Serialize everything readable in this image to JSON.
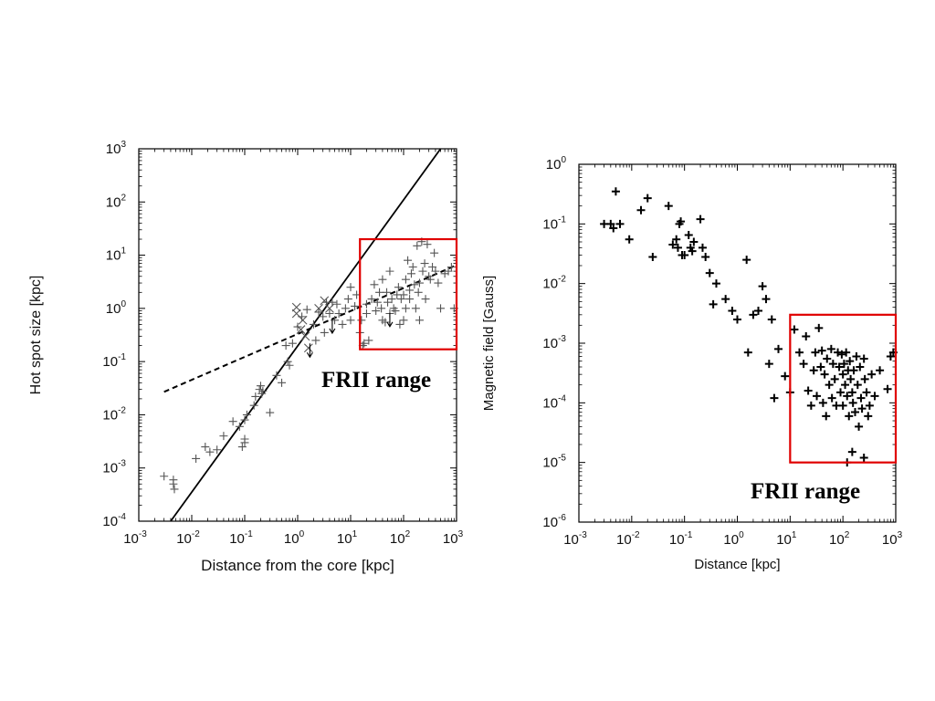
{
  "chart_data": [
    {
      "type": "scatter",
      "xlabel": "Distance from the core  [kpc]",
      "ylabel": "Hot spot size [kpc]",
      "xscale": "log",
      "yscale": "log",
      "xlim": [
        0.001,
        1000
      ],
      "ylim": [
        0.0001,
        1000
      ],
      "x_ticks": [
        {
          "base": "10",
          "exp": "-3"
        },
        {
          "base": "10",
          "exp": "-2"
        },
        {
          "base": "10",
          "exp": "-1"
        },
        {
          "base": "10",
          "exp": "0"
        },
        {
          "base": "10",
          "exp": "1"
        },
        {
          "base": "10",
          "exp": "2"
        },
        {
          "base": "10",
          "exp": "3"
        }
      ],
      "y_ticks": [
        {
          "base": "10",
          "exp": "-4"
        },
        {
          "base": "10",
          "exp": "-3"
        },
        {
          "base": "10",
          "exp": "-2"
        },
        {
          "base": "10",
          "exp": "-1"
        },
        {
          "base": "10",
          "exp": "0"
        },
        {
          "base": "10",
          "exp": "1"
        },
        {
          "base": "10",
          "exp": "2"
        },
        {
          "base": "10",
          "exp": "3"
        }
      ],
      "grid": false,
      "series": [
        {
          "marker": "plus",
          "color": "#555555",
          "points": [
            [
              0.003,
              0.0007
            ],
            [
              0.0045,
              0.0006
            ],
            [
              0.0045,
              0.0005
            ],
            [
              0.0047,
              0.0004
            ],
            [
              0.012,
              0.0015
            ],
            [
              0.018,
              0.0025
            ],
            [
              0.022,
              0.002
            ],
            [
              0.03,
              0.0022
            ],
            [
              0.04,
              0.004
            ],
            [
              0.06,
              0.0075
            ],
            [
              0.08,
              0.006
            ],
            [
              0.09,
              0.0025
            ],
            [
              0.1,
              0.003
            ],
            [
              0.1,
              0.0035
            ],
            [
              0.1,
              0.008
            ],
            [
              0.11,
              0.01
            ],
            [
              0.15,
              0.015
            ],
            [
              0.16,
              0.022
            ],
            [
              0.19,
              0.03
            ],
            [
              0.2,
              0.035
            ],
            [
              0.21,
              0.025
            ],
            [
              0.22,
              0.028
            ],
            [
              0.3,
              0.011
            ],
            [
              0.4,
              0.055
            ],
            [
              0.5,
              0.04
            ],
            [
              0.6,
              0.2
            ],
            [
              0.65,
              0.1
            ],
            [
              0.7,
              0.085
            ],
            [
              0.8,
              0.22
            ],
            [
              1.0,
              0.45
            ],
            [
              1.2,
              0.7
            ],
            [
              1.5,
              0.95
            ],
            [
              2.0,
              0.5
            ],
            [
              2.2,
              0.25
            ],
            [
              2.5,
              0.85
            ],
            [
              3.0,
              0.7
            ],
            [
              3.2,
              0.35
            ],
            [
              3.5,
              1.3
            ],
            [
              4.0,
              0.8
            ],
            [
              4.5,
              1.3
            ],
            [
              5.0,
              0.6
            ],
            [
              5.5,
              1.2
            ],
            [
              6.0,
              0.8
            ],
            [
              7.0,
              0.5
            ],
            [
              8.0,
              1.0
            ],
            [
              9.0,
              1.5
            ],
            [
              10,
              0.6
            ],
            [
              10,
              2.5
            ],
            [
              12,
              1.1
            ],
            [
              13,
              1.8
            ],
            [
              15,
              0.35
            ],
            [
              16,
              0.6
            ],
            [
              17,
              0.2
            ],
            [
              18,
              0.22
            ],
            [
              20,
              1.2
            ],
            [
              20,
              0.8
            ],
            [
              22,
              0.25
            ],
            [
              25,
              1.5
            ],
            [
              28,
              2.8
            ],
            [
              30,
              0.9
            ],
            [
              32,
              1.3
            ],
            [
              35,
              2.0
            ],
            [
              38,
              1.0
            ],
            [
              40,
              0.6
            ],
            [
              40,
              3.5
            ],
            [
              45,
              0.55
            ],
            [
              48,
              2.0
            ],
            [
              50,
              1.3
            ],
            [
              55,
              0.8
            ],
            [
              55,
              5.0
            ],
            [
              60,
              1.5
            ],
            [
              65,
              1.0
            ],
            [
              70,
              0.9
            ],
            [
              75,
              1.8
            ],
            [
              80,
              2.5
            ],
            [
              85,
              0.5
            ],
            [
              90,
              1.5
            ],
            [
              100,
              0.6
            ],
            [
              100,
              1.8
            ],
            [
              110,
              1.0
            ],
            [
              110,
              3.5
            ],
            [
              120,
              8.0
            ],
            [
              130,
              1.5
            ],
            [
              130,
              2.2
            ],
            [
              140,
              4.5
            ],
            [
              150,
              6.0
            ],
            [
              160,
              2.8
            ],
            [
              170,
              1.0
            ],
            [
              180,
              15
            ],
            [
              190,
              2.0
            ],
            [
              200,
              0.6
            ],
            [
              200,
              3.0
            ],
            [
              220,
              18
            ],
            [
              230,
              5.0
            ],
            [
              250,
              7.0
            ],
            [
              260,
              1.5
            ],
            [
              280,
              16
            ],
            [
              300,
              4.0
            ],
            [
              320,
              3.5
            ],
            [
              350,
              6.0
            ],
            [
              380,
              11
            ],
            [
              400,
              5.0
            ],
            [
              450,
              3.0
            ],
            [
              500,
              1.0
            ],
            [
              600,
              4.5
            ],
            [
              700,
              5.0
            ],
            [
              800,
              6.0
            ],
            [
              900,
              1.0
            ]
          ]
        },
        {
          "marker": "cross",
          "color": "#555555",
          "points": [
            [
              0.95,
              0.8
            ],
            [
              0.95,
              1.05
            ],
            [
              1.15,
              0.4
            ],
            [
              1.25,
              0.6
            ],
            [
              1.4,
              0.3
            ],
            [
              1.6,
              0.18
            ],
            [
              2.5,
              1.0
            ],
            [
              3.2,
              1.4
            ],
            [
              4.0,
              1.0
            ]
          ]
        },
        {
          "marker": "upper-limit-arrow",
          "color": "#000000",
          "points": [
            [
              1.7,
              0.16
            ],
            [
              4.5,
              0.45
            ],
            [
              55,
              0.6
            ]
          ]
        }
      ],
      "lines": [
        {
          "style": "solid",
          "color": "#000000",
          "points": [
            [
              0.004,
              0.0001
            ],
            [
              500,
              1000
            ]
          ]
        },
        {
          "style": "dashed",
          "color": "#000000",
          "points": [
            [
              0.003,
              0.027
            ],
            [
              1000,
              6.5
            ]
          ]
        }
      ],
      "highlight_box": {
        "x": [
          15,
          1000
        ],
        "y": [
          0.17,
          20
        ],
        "color": "#e00000",
        "label": "FRII range"
      }
    },
    {
      "type": "scatter",
      "xlabel": "Distance [kpc]",
      "ylabel": "Magnetic field [Gauss]",
      "xscale": "log",
      "yscale": "log",
      "xlim": [
        0.001,
        1000
      ],
      "ylim": [
        1e-06,
        1
      ],
      "x_ticks": [
        {
          "base": "10",
          "exp": "-3"
        },
        {
          "base": "10",
          "exp": "-2"
        },
        {
          "base": "10",
          "exp": "-1"
        },
        {
          "base": "10",
          "exp": "0"
        },
        {
          "base": "10",
          "exp": "1"
        },
        {
          "base": "10",
          "exp": "2"
        },
        {
          "base": "10",
          "exp": "3"
        }
      ],
      "y_ticks": [
        {
          "base": "10",
          "exp": "-6"
        },
        {
          "base": "10",
          "exp": "-5"
        },
        {
          "base": "10",
          "exp": "-4"
        },
        {
          "base": "10",
          "exp": "-3"
        },
        {
          "base": "10",
          "exp": "-2"
        },
        {
          "base": "10",
          "exp": "-1"
        },
        {
          "base": "10",
          "exp": "0"
        }
      ],
      "grid": false,
      "series": [
        {
          "marker": "plus",
          "color": "#000000",
          "points": [
            [
              0.003,
              0.1
            ],
            [
              0.004,
              0.1
            ],
            [
              0.0045,
              0.085
            ],
            [
              0.005,
              0.35
            ],
            [
              0.006,
              0.1
            ],
            [
              0.009,
              0.055
            ],
            [
              0.015,
              0.17
            ],
            [
              0.02,
              0.27
            ],
            [
              0.025,
              0.028
            ],
            [
              0.05,
              0.2
            ],
            [
              0.06,
              0.045
            ],
            [
              0.07,
              0.055
            ],
            [
              0.075,
              0.04
            ],
            [
              0.08,
              0.1
            ],
            [
              0.085,
              0.11
            ],
            [
              0.09,
              0.03
            ],
            [
              0.1,
              0.03
            ],
            [
              0.12,
              0.065
            ],
            [
              0.13,
              0.04
            ],
            [
              0.14,
              0.035
            ],
            [
              0.15,
              0.05
            ],
            [
              0.2,
              0.12
            ],
            [
              0.22,
              0.04
            ],
            [
              0.25,
              0.028
            ],
            [
              0.3,
              0.015
            ],
            [
              0.35,
              0.0045
            ],
            [
              0.4,
              0.01
            ],
            [
              0.6,
              0.0055
            ],
            [
              0.8,
              0.0035
            ],
            [
              1.0,
              0.0025
            ],
            [
              1.5,
              0.025
            ],
            [
              1.6,
              0.0007
            ],
            [
              2.0,
              0.003
            ],
            [
              2.5,
              0.0035
            ],
            [
              3.0,
              0.009
            ],
            [
              3.5,
              0.0055
            ],
            [
              4.0,
              0.00045
            ],
            [
              4.5,
              0.0025
            ],
            [
              5.0,
              0.00012
            ],
            [
              6.0,
              0.0008
            ],
            [
              8.0,
              0.00028
            ],
            [
              10,
              0.00015
            ],
            [
              12,
              0.0017
            ],
            [
              15,
              0.0007
            ],
            [
              18,
              0.00045
            ],
            [
              20,
              0.0013
            ],
            [
              22,
              0.00016
            ],
            [
              25,
              9e-05
            ],
            [
              28,
              0.00035
            ],
            [
              30,
              0.0007
            ],
            [
              32,
              0.00013
            ],
            [
              35,
              0.0018
            ],
            [
              38,
              0.0004
            ],
            [
              40,
              0.00075
            ],
            [
              42,
              0.0001
            ],
            [
              45,
              0.0003
            ],
            [
              48,
              6e-05
            ],
            [
              50,
              0.00055
            ],
            [
              55,
              0.0002
            ],
            [
              60,
              0.0008
            ],
            [
              62,
              0.00012
            ],
            [
              65,
              0.00045
            ],
            [
              70,
              0.00025
            ],
            [
              75,
              9e-05
            ],
            [
              80,
              0.0007
            ],
            [
              85,
              0.0004
            ],
            [
              90,
              0.00015
            ],
            [
              95,
              0.00065
            ],
            [
              100,
              0.0003
            ],
            [
              100,
              9e-05
            ],
            [
              105,
              0.00045
            ],
            [
              110,
              0.0002
            ],
            [
              115,
              0.0007
            ],
            [
              120,
              0.00013
            ],
            [
              125,
              0.00035
            ],
            [
              130,
              6e-05
            ],
            [
              135,
              0.0005
            ],
            [
              140,
              0.00025
            ],
            [
              150,
              0.00015
            ],
            [
              155,
              0.0001
            ],
            [
              160,
              0.00035
            ],
            [
              170,
              7e-05
            ],
            [
              180,
              0.0006
            ],
            [
              190,
              0.0002
            ],
            [
              200,
              4e-05
            ],
            [
              210,
              0.0004
            ],
            [
              220,
              0.00012
            ],
            [
              230,
              8e-05
            ],
            [
              250,
              0.00055
            ],
            [
              260,
              0.00025
            ],
            [
              280,
              0.00015
            ],
            [
              300,
              6e-05
            ],
            [
              320,
              9e-05
            ],
            [
              350,
              0.0003
            ],
            [
              400,
              0.00013
            ],
            [
              500,
              0.00035
            ],
            [
              700,
              0.00017
            ],
            [
              800,
              0.0006
            ],
            [
              900,
              0.0007
            ],
            [
              120,
              1e-05
            ],
            [
              150,
              1.5e-05
            ],
            [
              250,
              1.2e-05
            ]
          ]
        }
      ],
      "highlight_box": {
        "x": [
          10,
          1000
        ],
        "y": [
          1e-05,
          0.003
        ],
        "color": "#e00000",
        "label": "FRII range"
      }
    }
  ]
}
